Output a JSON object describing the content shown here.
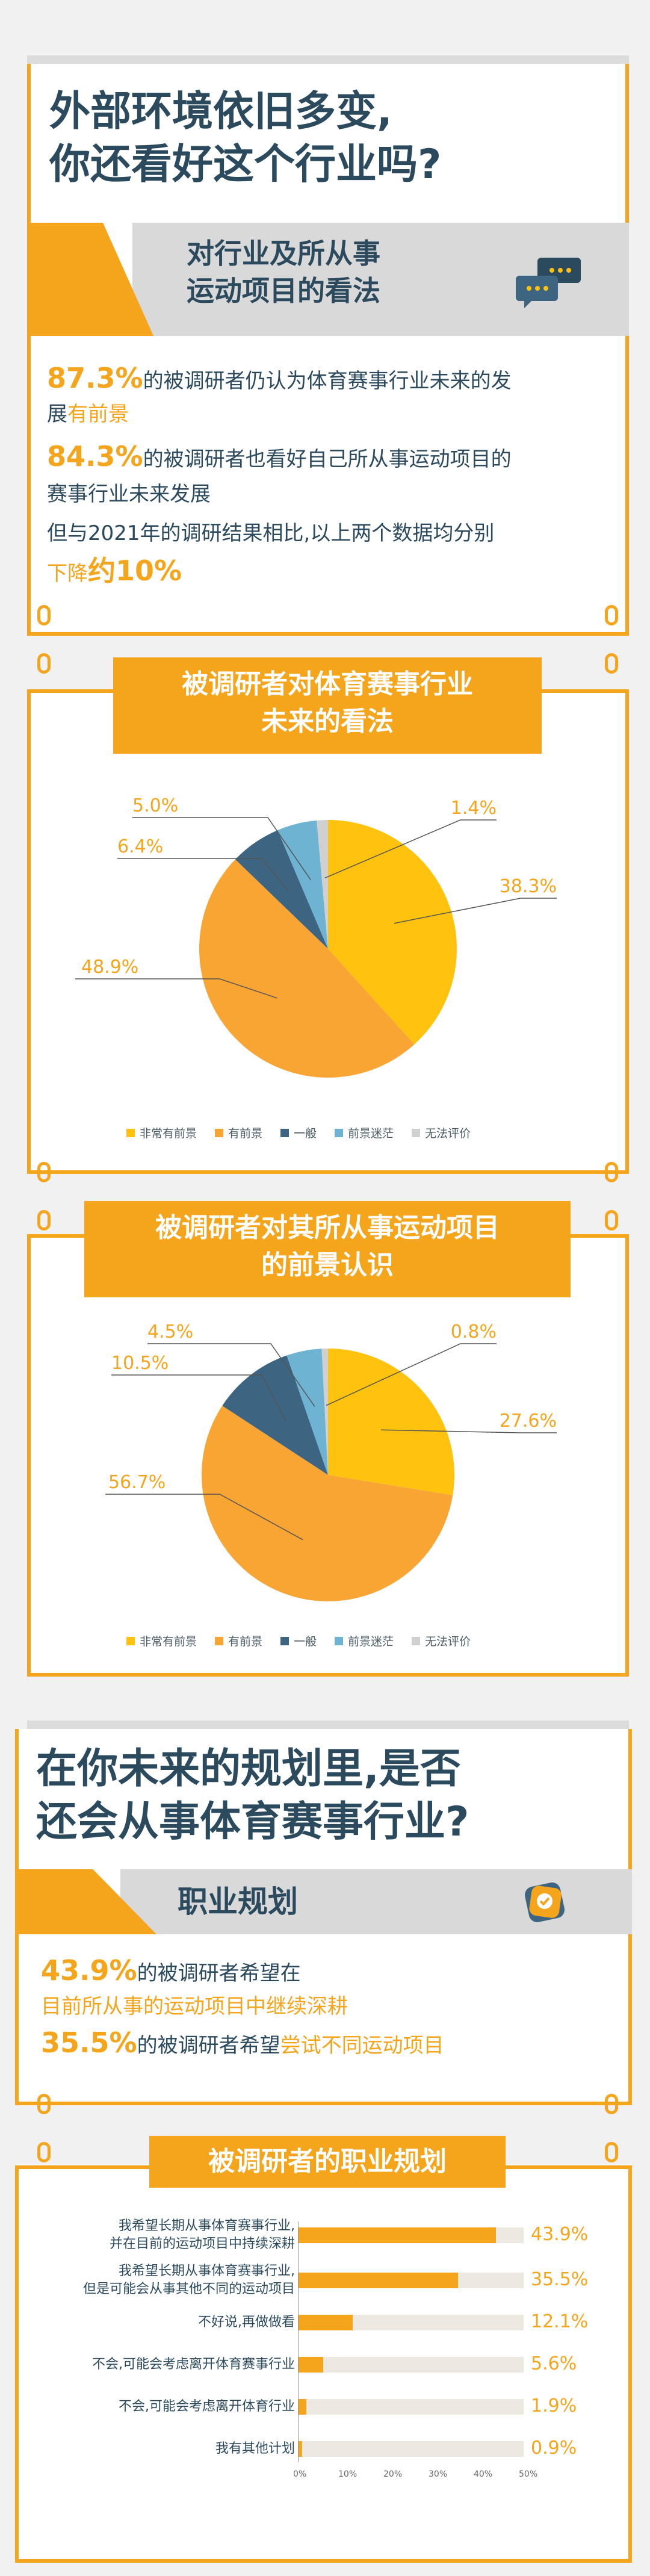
{
  "section1": {
    "headline_line1": "外部环境依旧多变,",
    "headline_line2": "你还看好这个行业吗?",
    "banner_line1": "对行业及所从事",
    "banner_line2": "运动项目的看法",
    "icon": "chat-bubbles-icon",
    "stat1_pct": "87.3%",
    "stat1_text": "的被调研者仍认为体育赛事行业未来的发",
    "stat1_text2": "展",
    "stat1_highlight": "有前景",
    "stat2_pct": "84.3%",
    "stat2_text": "的被调研者也看好自己所从事运动项目的",
    "stat2_text2": "赛事行业未来发展",
    "stat3_text": "但与2021年的调研结果相比,以上两个数据均分别",
    "stat3_highlight": "下降",
    "stat3_pct": "约10%"
  },
  "legend": [
    "非常有前景",
    "有前景",
    "一般",
    "前景迷茫",
    "无法评价"
  ],
  "colors": {
    "very_promising": "#ffc20e",
    "promising": "#f9a534",
    "average": "#3d6480",
    "unclear": "#6fb3d2",
    "no_comment": "#d0d0d0",
    "accent": "#f5a51c",
    "navy": "#2b4a5e"
  },
  "chart1_title_line1": "被调研者对体育赛事行业",
  "chart1_title_line2": "未来的看法",
  "chart2_title_line1": "被调研者对其所从事运动项目",
  "chart2_title_line2": "的前景认识",
  "section2": {
    "headline_line1": "在你未来的规划里,是否",
    "headline_line2": "还会从事体育赛事行业?",
    "banner": "职业规划",
    "icon": "career-badge-icon",
    "stat1_pct": "43.9%",
    "stat1_text": "的被调研者希望在",
    "stat1_text2": "目前所从事的运动项目中继续深耕",
    "stat2_pct": "35.5%",
    "stat2_text": "的被调研者希望",
    "stat2_highlight": "尝试不同运动项目"
  },
  "chart3_title": "被调研者的职业规划",
  "chart_data": [
    {
      "type": "pie",
      "title": "被调研者对体育赛事行业未来的看法",
      "categories": [
        "非常有前景",
        "有前景",
        "一般",
        "前景迷茫",
        "无法评价"
      ],
      "values": [
        38.3,
        48.9,
        6.4,
        5.0,
        1.4
      ],
      "labels": [
        "38.3%",
        "48.9%",
        "6.4%",
        "5.0%",
        "1.4%"
      ],
      "legend": "bottom"
    },
    {
      "type": "pie",
      "title": "被调研者对其所从事运动项目的前景认识",
      "categories": [
        "非常有前景",
        "有前景",
        "一般",
        "前景迷茫",
        "无法评价"
      ],
      "values": [
        27.6,
        56.7,
        10.5,
        4.5,
        0.8
      ],
      "labels": [
        "27.6%",
        "56.7%",
        "10.5%",
        "4.5%",
        "0.8%"
      ],
      "legend": "bottom"
    },
    {
      "type": "bar",
      "orientation": "horizontal",
      "title": "被调研者的职业规划",
      "categories": [
        "我希望长期从事体育赛事行业,\n并在目前的运动项目中持续深耕",
        "我希望长期从事体育赛事行业,\n但是可能会从事其他不同的运动项目",
        "不好说,再做做看",
        "不会,可能会考虑离开体育赛事行业",
        "不会,可能会考虑离开体育行业",
        "我有其他计划"
      ],
      "values": [
        43.9,
        35.5,
        12.1,
        5.6,
        1.9,
        0.9
      ],
      "labels": [
        "43.9%",
        "35.5%",
        "12.1%",
        "5.6%",
        "1.9%",
        "0.9%"
      ],
      "xlim": [
        0,
        50
      ],
      "xticks": [
        "0%",
        "10%",
        "20%",
        "30%",
        "40%",
        "50%"
      ]
    }
  ]
}
